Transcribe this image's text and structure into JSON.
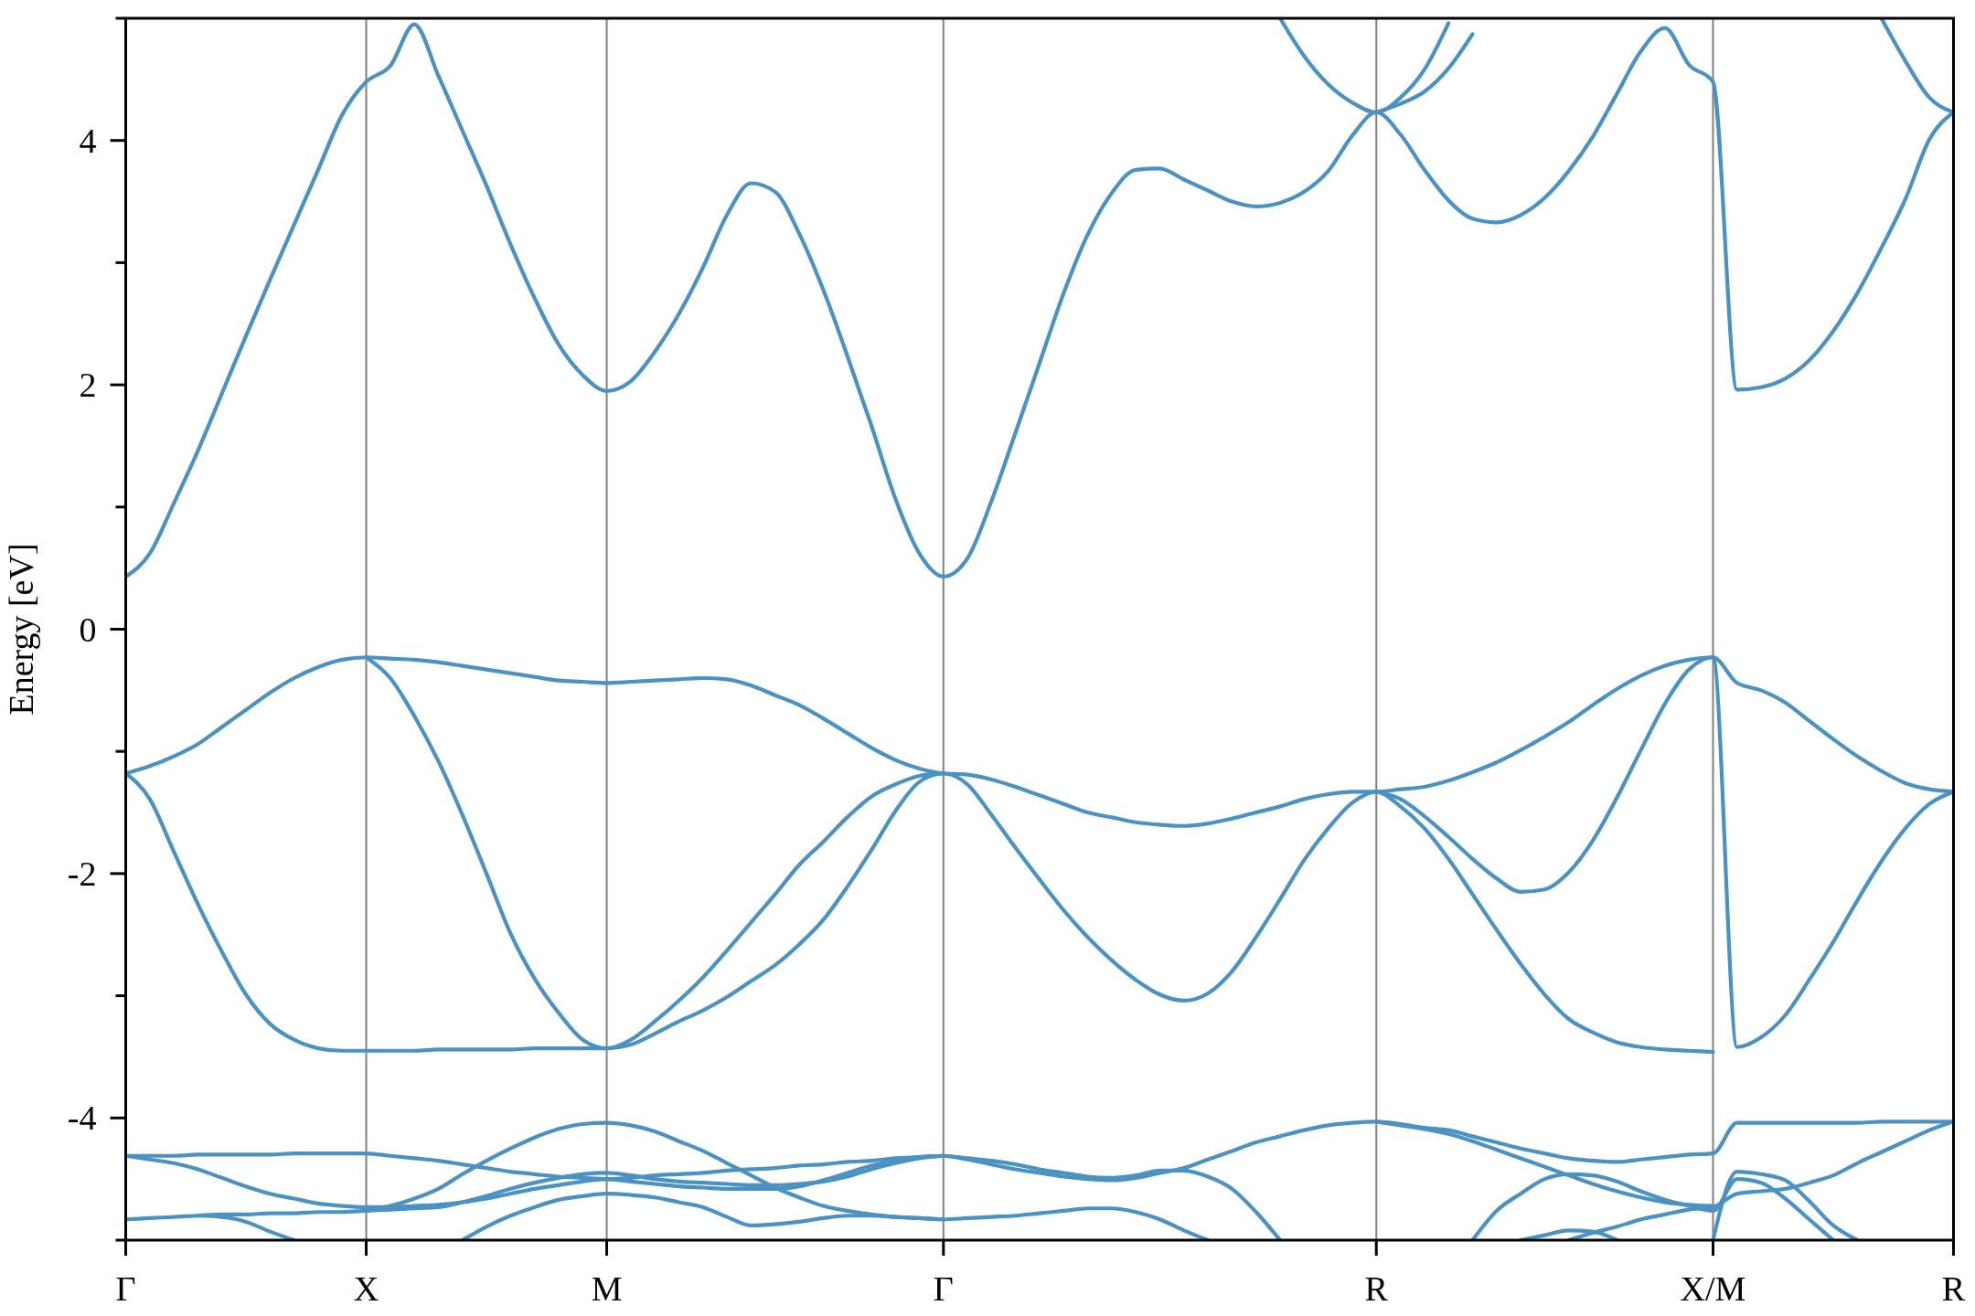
{
  "chart_data": {
    "type": "line",
    "ylabel": "Energy [eV]",
    "categories": [
      "Γ",
      null,
      null,
      null,
      null,
      null,
      null,
      null,
      null,
      null,
      "X",
      null,
      null,
      null,
      null,
      null,
      null,
      null,
      null,
      null,
      "M",
      null,
      null,
      null,
      null,
      null,
      null,
      null,
      null,
      null,
      null,
      null,
      null,
      null,
      "Γ",
      null,
      null,
      null,
      null,
      null,
      null,
      null,
      null,
      null,
      null,
      null,
      null,
      null,
      null,
      null,
      null,
      null,
      "R",
      null,
      null,
      null,
      null,
      null,
      null,
      null,
      null,
      null,
      null,
      null,
      null,
      null,
      "X/M",
      null,
      null,
      null,
      null,
      null,
      null,
      null,
      null,
      null,
      "R"
    ],
    "ylim": [
      -5,
      5
    ],
    "yticks": [
      {
        "value": -5,
        "label": null
      },
      -4,
      {
        "value": -3,
        "label": null
      },
      -2,
      {
        "value": -1,
        "label": null
      },
      0,
      {
        "value": 1,
        "label": null
      },
      2,
      {
        "value": 3,
        "label": null
      },
      4,
      {
        "value": 5,
        "label": null
      }
    ],
    "grid": "x",
    "series": [
      {
        "color": "#4b92c3",
        "values": [
          0.43,
          0.62,
          1.03,
          1.46,
          1.93,
          2.4,
          2.86,
          3.31,
          3.76,
          4.21,
          4.48,
          4.61,
          4.95,
          4.53,
          4.08,
          3.63,
          3.15,
          2.71,
          2.33,
          2.08,
          1.95,
          2.03,
          2.27,
          2.58,
          2.96,
          3.39,
          3.65,
          3.58,
          3.24,
          2.78,
          2.24,
          1.67,
          1.07,
          0.62,
          0.43,
          0.58,
          1.05,
          1.61,
          2.18,
          2.75,
          3.23,
          3.57,
          3.76,
          3.77,
          3.68,
          3.59,
          3.5,
          3.46,
          3.49,
          3.58,
          3.75,
          4.04,
          4.23,
          4.05,
          3.76,
          3.51,
          3.36,
          3.33,
          3.39,
          3.53,
          3.75,
          4.03,
          4.38,
          4.73,
          4.92,
          4.62,
          4.48,
          1.96,
          1.98,
          2.05,
          2.2,
          2.44,
          2.75,
          3.12,
          3.52,
          4.01,
          4.23
        ]
      },
      {
        "color": "#4b92c3",
        "values": [
          null,
          null,
          null,
          null,
          null,
          null,
          null,
          null,
          null,
          null,
          null,
          null,
          null,
          null,
          null,
          null,
          null,
          null,
          null,
          null,
          null,
          null,
          null,
          null,
          null,
          null,
          null,
          null,
          null,
          null,
          null,
          null,
          null,
          null,
          null,
          null,
          null,
          null,
          null,
          null,
          null,
          null,
          null,
          null,
          null,
          null,
          null,
          null,
          5,
          4.69,
          4.46,
          4.31,
          4.23,
          4.35,
          4.58,
          4.96,
          null,
          null,
          null,
          null,
          null,
          null,
          null,
          null,
          null,
          null,
          null,
          null,
          null,
          null,
          null,
          null,
          null,
          null,
          null,
          null,
          null
        ]
      },
      {
        "color": "#4b92c3",
        "values": [
          null,
          null,
          null,
          null,
          null,
          null,
          null,
          null,
          null,
          null,
          null,
          null,
          null,
          null,
          null,
          null,
          null,
          null,
          null,
          null,
          null,
          null,
          null,
          null,
          null,
          null,
          null,
          null,
          null,
          null,
          null,
          null,
          null,
          null,
          null,
          null,
          null,
          null,
          null,
          null,
          null,
          null,
          null,
          null,
          null,
          null,
          null,
          null,
          null,
          null,
          null,
          null,
          4.23,
          4.3,
          4.4,
          4.59,
          4.87,
          null,
          null,
          null,
          null,
          null,
          null,
          null,
          null,
          null,
          null,
          null,
          null,
          null,
          null,
          null,
          null,
          null,
          null,
          null,
          null
        ]
      },
      {
        "color": "#4b92c3",
        "values": [
          null,
          null,
          null,
          null,
          null,
          null,
          null,
          null,
          null,
          null,
          null,
          null,
          null,
          null,
          null,
          null,
          null,
          null,
          null,
          null,
          null,
          null,
          null,
          null,
          null,
          null,
          null,
          null,
          null,
          null,
          null,
          null,
          null,
          null,
          null,
          null,
          null,
          null,
          null,
          null,
          null,
          null,
          null,
          null,
          null,
          null,
          null,
          null,
          null,
          null,
          null,
          null,
          null,
          null,
          null,
          null,
          null,
          null,
          null,
          null,
          null,
          null,
          null,
          null,
          null,
          null,
          null,
          null,
          null,
          null,
          null,
          null,
          null,
          5,
          4.65,
          4.35,
          4.23
        ]
      },
      {
        "color": "#4b92c3",
        "values": [
          -1.18,
          -1.12,
          -1.04,
          -0.94,
          -0.8,
          -0.66,
          -0.52,
          -0.4,
          -0.31,
          -0.25,
          -0.23,
          -0.24,
          -0.25,
          -0.27,
          -0.3,
          -0.33,
          -0.36,
          -0.39,
          -0.42,
          -0.43,
          -0.44,
          -0.43,
          -0.42,
          -0.41,
          -0.4,
          -0.41,
          -0.46,
          -0.54,
          -0.62,
          -0.73,
          -0.85,
          -0.97,
          -1.07,
          -1.14,
          -1.18,
          -1.19,
          -1.23,
          -1.29,
          -1.36,
          -1.43,
          -1.5,
          -1.54,
          -1.58,
          -1.6,
          -1.61,
          -1.59,
          -1.55,
          -1.5,
          -1.45,
          -1.39,
          -1.35,
          -1.33,
          -1.33,
          -1.31,
          -1.29,
          -1.24,
          -1.17,
          -1.09,
          -0.99,
          -0.88,
          -0.76,
          -0.62,
          -0.49,
          -0.38,
          -0.3,
          -0.25,
          -0.23,
          -0.44,
          -0.5,
          -0.6,
          -0.75,
          -0.9,
          -1.04,
          -1.16,
          -1.26,
          -1.31,
          -1.33
        ]
      },
      {
        "color": "#4b92c3",
        "values": [
          null,
          null,
          null,
          null,
          null,
          null,
          null,
          null,
          null,
          null,
          -0.23,
          -0.4,
          -0.71,
          -1.08,
          -1.52,
          -2.0,
          -2.49,
          -2.86,
          -3.14,
          -3.36,
          -3.43,
          -3.36,
          -3.21,
          -3.04,
          -2.85,
          -2.63,
          -2.4,
          -2.17,
          -1.93,
          -1.74,
          -1.54,
          -1.37,
          -1.27,
          -1.2,
          -1.18,
          null,
          null,
          null,
          null,
          null,
          null,
          null,
          null,
          null,
          null,
          null,
          null,
          null,
          null,
          null,
          null,
          null,
          null,
          null,
          null,
          null,
          null,
          null,
          null,
          null,
          null,
          null,
          null,
          null,
          null,
          null,
          null,
          null,
          null,
          null,
          null,
          null,
          null,
          null,
          null,
          null,
          null
        ]
      },
      {
        "color": "#4b92c3",
        "values": [
          -1.18,
          -1.39,
          -1.82,
          -2.25,
          -2.64,
          -2.99,
          -3.23,
          -3.36,
          -3.43,
          -3.45,
          -3.45,
          -3.45,
          -3.45,
          -3.44,
          -3.44,
          -3.44,
          -3.44,
          -3.43,
          -3.43,
          -3.43,
          -3.43,
          -3.4,
          -3.31,
          -3.21,
          -3.12,
          -3.01,
          -2.88,
          -2.75,
          -2.58,
          -2.38,
          -2.11,
          -1.81,
          -1.49,
          -1.25,
          -1.18,
          -1.27,
          -1.52,
          -1.79,
          -2.05,
          -2.3,
          -2.52,
          -2.71,
          -2.87,
          -2.99,
          -3.04,
          -2.98,
          -2.8,
          -2.52,
          -2.21,
          -1.89,
          -1.63,
          -1.42,
          -1.33,
          -1.45,
          -1.63,
          -1.88,
          -2.17,
          -2.46,
          -2.74,
          -2.99,
          -3.19,
          -3.3,
          -3.38,
          -3.42,
          -3.44,
          -3.45,
          -3.46,
          null,
          null,
          null,
          null,
          null,
          null,
          null,
          null,
          null,
          null
        ]
      },
      {
        "color": "#4b92c3",
        "values": [
          null,
          null,
          null,
          null,
          null,
          null,
          null,
          null,
          null,
          null,
          null,
          null,
          null,
          null,
          null,
          null,
          null,
          null,
          null,
          null,
          null,
          null,
          null,
          null,
          null,
          null,
          null,
          null,
          null,
          null,
          null,
          null,
          null,
          null,
          null,
          null,
          null,
          null,
          null,
          null,
          null,
          null,
          null,
          null,
          null,
          null,
          null,
          null,
          null,
          null,
          null,
          null,
          -1.33,
          -1.39,
          -1.53,
          -1.7,
          -1.88,
          -2.04,
          -2.15,
          -2.13,
          -1.99,
          -1.73,
          -1.38,
          -0.99,
          -0.61,
          -0.33,
          -0.23,
          -3.42,
          -3.34,
          -3.16,
          -2.87,
          -2.56,
          -2.22,
          -1.9,
          -1.63,
          -1.43,
          -1.33
        ]
      },
      {
        "color": "#4b92c3",
        "values": [
          -4.31,
          -4.31,
          -4.31,
          -4.3,
          -4.3,
          -4.3,
          -4.3,
          -4.29,
          -4.29,
          -4.29,
          -4.29,
          -4.31,
          -4.33,
          -4.35,
          -4.38,
          -4.41,
          -4.44,
          -4.46,
          -4.48,
          -4.49,
          -4.5,
          -4.49,
          -4.47,
          -4.46,
          -4.45,
          -4.43,
          -4.42,
          -4.41,
          -4.39,
          -4.38,
          -4.36,
          -4.35,
          -4.33,
          -4.32,
          -4.31,
          -4.34,
          -4.38,
          -4.42,
          -4.45,
          -4.48,
          -4.5,
          -4.51,
          -4.49,
          -4.45,
          -4.41,
          -4.34,
          -4.27,
          -4.2,
          -4.15,
          -4.1,
          -4.06,
          -4.04,
          -4.03,
          -4.05,
          -4.08,
          -4.1,
          -4.15,
          -4.2,
          -4.25,
          -4.29,
          -4.33,
          -4.35,
          -4.36,
          -4.34,
          -4.32,
          -4.3,
          -4.29,
          -4.04,
          -4.04,
          -4.04,
          -4.04,
          -4.04,
          -4.04,
          -4.03,
          -4.03,
          -4.03,
          -4.03
        ]
      },
      {
        "color": "#4b92c3",
        "values": [
          -4.31,
          -4.34,
          -4.37,
          -4.42,
          -4.49,
          -4.56,
          -4.62,
          -4.66,
          -4.7,
          -4.72,
          -4.73,
          -4.73,
          -4.72,
          -4.71,
          -4.69,
          -4.66,
          -4.62,
          -4.58,
          -4.55,
          -4.52,
          -4.5,
          -4.52,
          -4.54,
          -4.56,
          -4.57,
          -4.58,
          -4.58,
          -4.58,
          -4.56,
          -4.51,
          -4.45,
          -4.39,
          -4.35,
          -4.32,
          -4.31,
          -4.33,
          -4.35,
          -4.38,
          -4.42,
          -4.45,
          -4.48,
          -4.49,
          -4.47,
          -4.43,
          -4.43,
          -4.48,
          -4.58,
          -4.77,
          -5,
          null,
          null,
          null,
          null,
          null,
          null,
          null,
          null,
          null,
          null,
          null,
          null,
          null,
          null,
          null,
          null,
          null,
          null,
          null,
          null,
          null,
          null,
          null,
          null,
          null,
          null,
          null,
          null
        ]
      },
      {
        "color": "#4b92c3",
        "values": [
          -4.83,
          -4.82,
          -4.81,
          -4.8,
          -4.79,
          -4.79,
          -4.78,
          -4.78,
          -4.77,
          -4.77,
          -4.76,
          -4.75,
          -4.74,
          -4.73,
          -4.69,
          -4.64,
          -4.58,
          -4.53,
          -4.49,
          -4.46,
          -4.45,
          -4.47,
          -4.5,
          -4.52,
          -4.53,
          -4.54,
          -4.55,
          -4.55,
          -4.54,
          -4.52,
          -4.48,
          -4.42,
          -4.37,
          -4.33,
          -4.31,
          null,
          null,
          null,
          null,
          null,
          null,
          null,
          null,
          null,
          null,
          null,
          null,
          null,
          null,
          null,
          null,
          null,
          null,
          null,
          null,
          null,
          null,
          null,
          null,
          null,
          null,
          null,
          null,
          null,
          null,
          null,
          null,
          null,
          null,
          null,
          null,
          null,
          null,
          null,
          null,
          null,
          null
        ]
      },
      {
        "color": "#4b92c3",
        "values": [
          null,
          null,
          null,
          null,
          null,
          null,
          null,
          null,
          null,
          null,
          -4.75,
          -4.72,
          -4.66,
          -4.58,
          -4.46,
          -4.35,
          -4.25,
          -4.16,
          -4.09,
          -4.05,
          -4.04,
          -4.06,
          -4.11,
          -4.19,
          -4.27,
          -4.37,
          -4.47,
          -4.57,
          -4.65,
          -4.72,
          -4.76,
          -4.79,
          -4.81,
          -4.82,
          -4.83,
          -4.82,
          -4.81,
          -4.8,
          -4.78,
          -4.76,
          -4.74,
          -4.74,
          -4.77,
          -4.83,
          -4.92,
          -5,
          null,
          null,
          null,
          null,
          null,
          null,
          null,
          null,
          null,
          null,
          null,
          null,
          null,
          null,
          null,
          null,
          null,
          null,
          null,
          null,
          null,
          null,
          null,
          null,
          null,
          null,
          null,
          null,
          null,
          null,
          null
        ]
      },
      {
        "color": "#4b92c3",
        "values": [
          null,
          null,
          null,
          null,
          null,
          null,
          null,
          null,
          null,
          null,
          null,
          null,
          null,
          null,
          -5,
          -4.89,
          -4.8,
          -4.73,
          -4.67,
          -4.64,
          -4.62,
          -4.63,
          -4.65,
          -4.69,
          -4.73,
          -4.81,
          -4.88,
          -4.87,
          -4.85,
          -4.82,
          -4.8,
          -4.8,
          -4.81,
          -4.82,
          -4.83,
          null,
          null,
          null,
          null,
          null,
          null,
          null,
          null,
          null,
          null,
          null,
          null,
          null,
          null,
          null,
          null,
          null,
          null,
          null,
          null,
          null,
          null,
          null,
          null,
          null,
          null,
          null,
          null,
          null,
          null,
          null,
          null,
          null,
          null,
          null,
          null,
          null,
          null,
          null,
          null,
          null,
          null
        ]
      },
      {
        "color": "#4b92c3",
        "values": [
          null,
          null,
          null,
          -4.8,
          -4.81,
          -4.85,
          -4.93,
          -5,
          null,
          null,
          null,
          null,
          null,
          null,
          null,
          null,
          null,
          null,
          null,
          null,
          null,
          null,
          null,
          null,
          null,
          null,
          null,
          null,
          null,
          null,
          null,
          null,
          null,
          null,
          null,
          null,
          null,
          null,
          null,
          null,
          null,
          null,
          null,
          null,
          null,
          null,
          null,
          null,
          null,
          null,
          null,
          null,
          null,
          null,
          null,
          null,
          null,
          null,
          null,
          null,
          null,
          null,
          null,
          null,
          null,
          null,
          null,
          null,
          null,
          null,
          null,
          null,
          null,
          null,
          null,
          null,
          null
        ]
      },
      {
        "color": "#4b92c3",
        "values": [
          null,
          null,
          null,
          null,
          null,
          null,
          null,
          null,
          null,
          null,
          null,
          null,
          null,
          null,
          null,
          null,
          null,
          null,
          null,
          null,
          null,
          null,
          null,
          null,
          null,
          null,
          null,
          null,
          null,
          null,
          null,
          null,
          null,
          null,
          null,
          null,
          null,
          null,
          null,
          null,
          null,
          null,
          null,
          null,
          null,
          null,
          null,
          null,
          null,
          null,
          null,
          null,
          -4.03,
          -4.06,
          -4.09,
          -4.13,
          -4.19,
          -4.26,
          -4.33,
          -4.4,
          -4.47,
          -4.54,
          -4.6,
          -4.65,
          -4.69,
          -4.71,
          -4.72,
          null,
          null,
          null,
          null,
          null,
          null,
          null,
          null,
          null,
          null
        ]
      },
      {
        "color": "#4b92c3",
        "values": [
          null,
          null,
          null,
          null,
          null,
          null,
          null,
          null,
          null,
          null,
          null,
          null,
          null,
          null,
          null,
          null,
          null,
          null,
          null,
          null,
          null,
          null,
          null,
          null,
          null,
          null,
          null,
          null,
          null,
          null,
          null,
          null,
          null,
          null,
          null,
          null,
          null,
          null,
          null,
          null,
          null,
          null,
          null,
          null,
          null,
          null,
          null,
          null,
          null,
          null,
          null,
          null,
          null,
          null,
          null,
          null,
          -5,
          -4.76,
          -4.62,
          -4.5,
          -4.46,
          -4.47,
          -4.52,
          -4.6,
          -4.67,
          -4.72,
          -4.76,
          -4.5,
          -4.53,
          -4.66,
          -4.83,
          -5,
          null,
          null,
          null,
          null,
          null
        ]
      },
      {
        "color": "#4b92c3",
        "values": [
          null,
          null,
          null,
          null,
          null,
          null,
          null,
          null,
          null,
          null,
          null,
          null,
          null,
          null,
          null,
          null,
          null,
          null,
          null,
          null,
          null,
          null,
          null,
          null,
          null,
          null,
          null,
          null,
          null,
          null,
          null,
          null,
          null,
          null,
          null,
          null,
          null,
          null,
          null,
          null,
          null,
          null,
          null,
          null,
          null,
          null,
          null,
          null,
          null,
          null,
          null,
          null,
          null,
          null,
          null,
          null,
          null,
          null,
          -5,
          -4.96,
          -4.92,
          -4.93,
          -5,
          null,
          null,
          null,
          null,
          null,
          null,
          null,
          null,
          null,
          null,
          null,
          null,
          null,
          null
        ]
      },
      {
        "color": "#4b92c3",
        "values": [
          null,
          null,
          null,
          null,
          null,
          null,
          null,
          null,
          null,
          null,
          null,
          null,
          null,
          null,
          null,
          null,
          null,
          null,
          null,
          null,
          null,
          null,
          null,
          null,
          null,
          null,
          null,
          null,
          null,
          null,
          null,
          null,
          null,
          null,
          null,
          null,
          null,
          null,
          null,
          null,
          null,
          null,
          null,
          null,
          null,
          null,
          null,
          null,
          null,
          null,
          null,
          null,
          null,
          null,
          null,
          null,
          null,
          null,
          null,
          null,
          -5,
          -4.94,
          -4.89,
          -4.83,
          -4.79,
          -4.75,
          -4.73,
          -4.62,
          -4.6,
          -4.58,
          -4.53,
          -4.47,
          -4.37,
          -4.28,
          -4.19,
          -4.1,
          -4.03
        ]
      },
      {
        "color": "#4b92c3",
        "values": [
          null,
          null,
          null,
          null,
          null,
          null,
          null,
          null,
          null,
          null,
          null,
          null,
          null,
          null,
          null,
          null,
          null,
          null,
          null,
          null,
          null,
          null,
          null,
          null,
          null,
          null,
          null,
          null,
          null,
          null,
          null,
          null,
          null,
          null,
          null,
          null,
          null,
          null,
          null,
          null,
          null,
          null,
          null,
          null,
          null,
          null,
          null,
          null,
          null,
          null,
          null,
          null,
          null,
          null,
          null,
          null,
          null,
          null,
          null,
          null,
          null,
          null,
          null,
          null,
          null,
          null,
          -5,
          -4.44,
          -4.46,
          -4.51,
          -4.68,
          -4.88,
          -5,
          null,
          null,
          null,
          null
        ]
      }
    ]
  }
}
